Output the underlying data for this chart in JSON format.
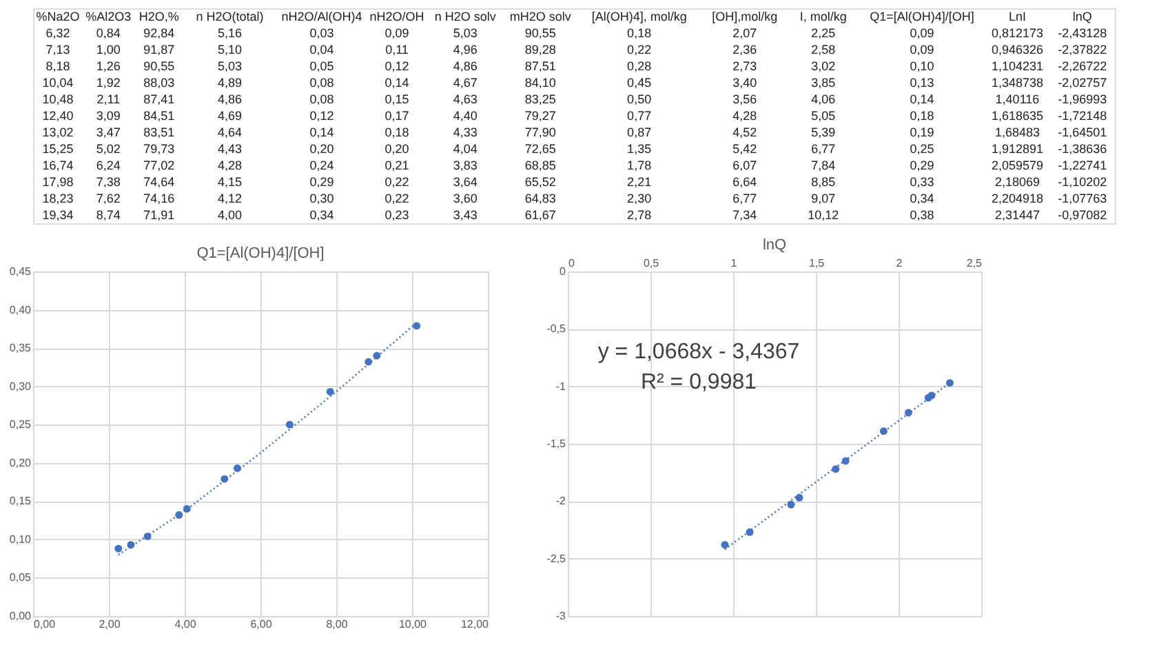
{
  "chart_data": [
    {
      "type": "other",
      "categories": [
        "%Na2O",
        "%Al2O3",
        "H2O,%",
        "n H2O(total)",
        "nH2O/Al(OH)4",
        "nH2O/OH",
        "n H2O solv",
        "mH2O solv",
        "[Al(OH)4], mol/kg",
        "[OH],mol/kg",
        "I, mol/kg",
        "Q1=[Al(OH)4]/[OH]",
        "LnI",
        "lnQ"
      ],
      "cell_labels": [
        [
          "6,32",
          "0,84",
          "92,84",
          "5,16",
          "0,03",
          "0,09",
          "5,03",
          "90,55",
          "0,18",
          "2,07",
          "2,25",
          "0,09",
          "0,812173",
          "-2,43128"
        ],
        [
          "7,13",
          "1,00",
          "91,87",
          "5,10",
          "0,04",
          "0,11",
          "4,96",
          "89,28",
          "0,22",
          "2,36",
          "2,58",
          "0,09",
          "0,946326",
          "-2,37822"
        ],
        [
          "8,18",
          "1,26",
          "90,55",
          "5,03",
          "0,05",
          "0,12",
          "4,86",
          "87,51",
          "0,28",
          "2,73",
          "3,02",
          "0,10",
          "1,104231",
          "-2,26722"
        ],
        [
          "10,04",
          "1,92",
          "88,03",
          "4,89",
          "0,08",
          "0,14",
          "4,67",
          "84,10",
          "0,45",
          "3,40",
          "3,85",
          "0,13",
          "1,348738",
          "-2,02757"
        ],
        [
          "10,48",
          "2,11",
          "87,41",
          "4,86",
          "0,08",
          "0,15",
          "4,63",
          "83,25",
          "0,50",
          "3,56",
          "4,06",
          "0,14",
          "1,40116",
          "-1,96993"
        ],
        [
          "12,40",
          "3,09",
          "84,51",
          "4,69",
          "0,12",
          "0,17",
          "4,40",
          "79,27",
          "0,77",
          "4,28",
          "5,05",
          "0,18",
          "1,618635",
          "-1,72148"
        ],
        [
          "13,02",
          "3,47",
          "83,51",
          "4,64",
          "0,14",
          "0,18",
          "4,33",
          "77,90",
          "0,87",
          "4,52",
          "5,39",
          "0,19",
          "1,68483",
          "-1,64501"
        ],
        [
          "15,25",
          "5,02",
          "79,73",
          "4,43",
          "0,20",
          "0,20",
          "4,04",
          "72,65",
          "1,35",
          "5,42",
          "6,77",
          "0,25",
          "1,912891",
          "-1,38636"
        ],
        [
          "16,74",
          "6,24",
          "77,02",
          "4,28",
          "0,24",
          "0,21",
          "3,83",
          "68,85",
          "1,78",
          "6,07",
          "7,84",
          "0,29",
          "2,059579",
          "-1,22741"
        ],
        [
          "17,98",
          "7,38",
          "74,64",
          "4,15",
          "0,29",
          "0,22",
          "3,64",
          "65,52",
          "2,21",
          "6,64",
          "8,85",
          "0,33",
          "2,18069",
          "-1,10202"
        ],
        [
          "18,23",
          "7,62",
          "74,16",
          "4,12",
          "0,30",
          "0,22",
          "3,60",
          "64,83",
          "2,30",
          "6,77",
          "9,07",
          "0,34",
          "2,204918",
          "-1,07763"
        ],
        [
          "19,34",
          "8,74",
          "71,91",
          "4,00",
          "0,34",
          "0,23",
          "3,43",
          "61,67",
          "2,78",
          "7,34",
          "10,12",
          "0,38",
          "2,31447",
          "-0,97082"
        ]
      ]
    },
    {
      "type": "scatter",
      "title": "Q1=[Al(OH)4]/[OH]",
      "grid": true,
      "xlim": [
        0,
        12
      ],
      "xticks": [
        {
          "value": 0,
          "label": "0,00"
        },
        {
          "value": 2,
          "label": "2,00"
        },
        {
          "value": 4,
          "label": "4,00"
        },
        {
          "value": 6,
          "label": "6,00"
        },
        {
          "value": 8,
          "label": "8,00"
        },
        {
          "value": 10,
          "label": "10,00"
        },
        {
          "value": 12,
          "label": "12,00"
        }
      ],
      "ylim": [
        0,
        0.45
      ],
      "yticks": [
        {
          "value": 0,
          "label": "0,00"
        },
        {
          "value": 0.05,
          "label": "0,05"
        },
        {
          "value": 0.1,
          "label": "0,10"
        },
        {
          "value": 0.15,
          "label": "0,15"
        },
        {
          "value": 0.2,
          "label": "0,20"
        },
        {
          "value": 0.25,
          "label": "0,25"
        },
        {
          "value": 0.3,
          "label": "0,30"
        },
        {
          "value": 0.35,
          "label": "0,35"
        },
        {
          "value": 0.4,
          "label": "0,40"
        },
        {
          "value": 0.45,
          "label": "0,45"
        }
      ],
      "series": [
        {
          "type": "scatter",
          "marker": "circle",
          "color": "#4472c4",
          "x": [
            2.25,
            2.58,
            3.02,
            3.85,
            4.06,
            5.05,
            5.39,
            6.77,
            7.84,
            8.85,
            9.07,
            10.12
          ],
          "values": [
            0.088,
            0.093,
            0.104,
            0.132,
            0.14,
            0.179,
            0.193,
            0.25,
            0.293,
            0.332,
            0.34,
            0.379
          ]
        },
        {
          "type": "line",
          "line_style": "dotted",
          "color": "#4472c4",
          "x": [
            2.25,
            4.0,
            6.0,
            8.0,
            10.12
          ],
          "values": [
            0.08,
            0.137,
            0.213,
            0.293,
            0.383
          ]
        }
      ]
    },
    {
      "type": "scatter",
      "title": "lnQ",
      "grid": true,
      "annotations": [
        "y = 1,0668x - 3,4367",
        "R² = 0,9981"
      ],
      "xlim": [
        0,
        2.5
      ],
      "xticks": [
        0,
        {
          "value": 0.5,
          "label": "0,5"
        },
        1,
        {
          "value": 1.5,
          "label": "1,5"
        },
        2,
        {
          "value": 2.5,
          "label": "2,5"
        }
      ],
      "ylim": [
        -3,
        0
      ],
      "yticks": [
        -3,
        {
          "value": -2.5,
          "label": "-2,5"
        },
        -2,
        {
          "value": -1.5,
          "label": "-1,5"
        },
        -1,
        {
          "value": -0.5,
          "label": "-0,5"
        },
        0
      ],
      "series": [
        {
          "type": "scatter",
          "marker": "circle",
          "color": "#4472c4",
          "x": [
            0.95,
            1.1,
            1.35,
            1.4,
            1.62,
            1.68,
            1.91,
            2.06,
            2.18,
            2.2,
            2.31
          ],
          "values": [
            -2.38,
            -2.27,
            -2.03,
            -1.97,
            -1.72,
            -1.65,
            -1.39,
            -1.23,
            -1.1,
            -1.08,
            -0.97
          ]
        },
        {
          "type": "line",
          "line_style": "dotted",
          "color": "#4472c4",
          "x": [
            0.95,
            2.31
          ],
          "values": [
            -2.42,
            -0.97
          ]
        }
      ]
    }
  ]
}
